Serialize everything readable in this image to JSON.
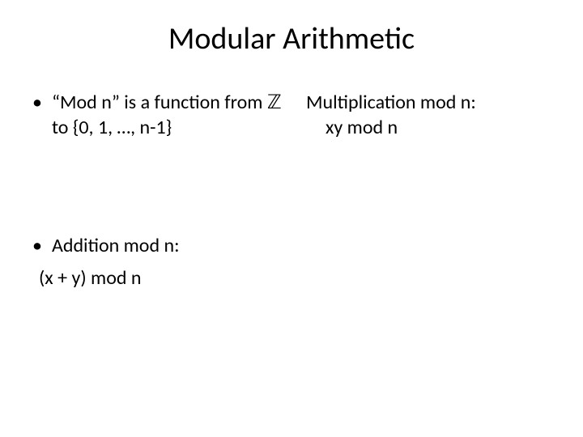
{
  "title": "Modular Arithmetic",
  "left": {
    "bullet1": "“Mod n” is a function from ℤ to {0, 1, …, n-1}",
    "bullet2": "Addition mod n:",
    "sub2": "(x + y) mod n"
  },
  "right": {
    "heading": "Multiplication mod n:",
    "sub": "xy mod n"
  },
  "style": {
    "background_color": "#ffffff",
    "text_color": "#000000",
    "title_fontsize": 38,
    "body_fontsize": 24,
    "font_family": "Calibri"
  }
}
